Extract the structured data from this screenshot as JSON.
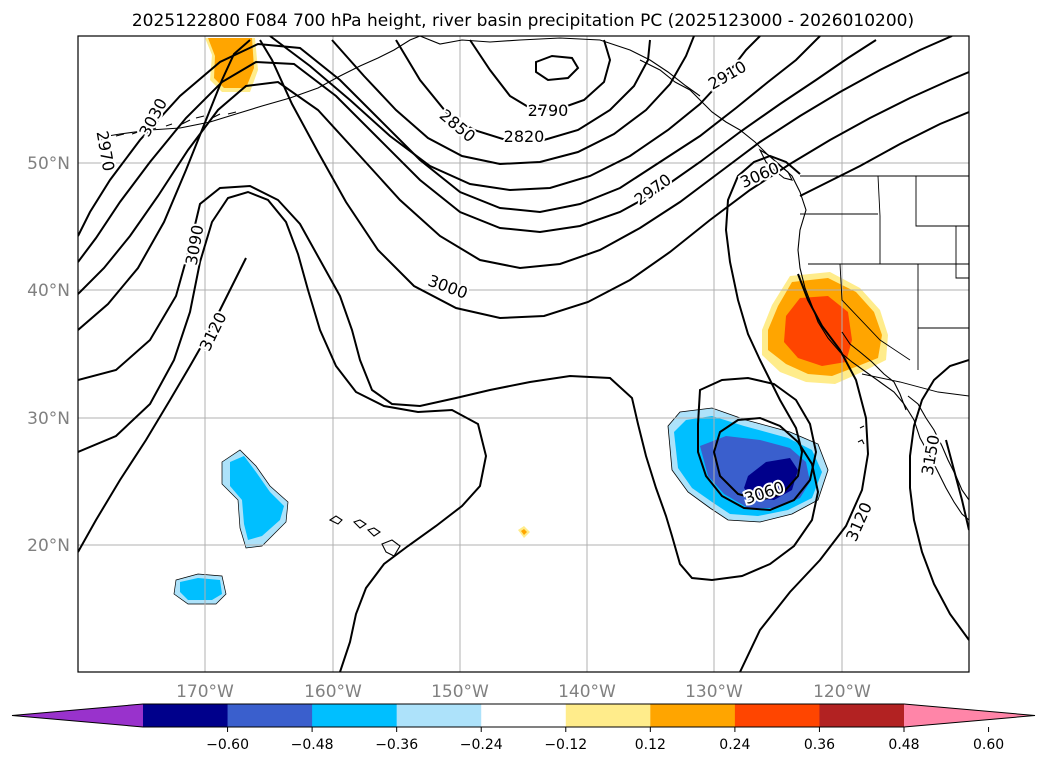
{
  "title": "2025122800 F084 700 hPa height, river basin precipitation PC (2025123000 - 2026010200)",
  "map": {
    "lon_range": [
      -180,
      -110
    ],
    "lat_range": [
      10,
      60
    ],
    "lon_ticks": [
      {
        "value": -170,
        "label": "170°W"
      },
      {
        "value": -160,
        "label": "160°W"
      },
      {
        "value": -150,
        "label": "150°W"
      },
      {
        "value": -140,
        "label": "140°W"
      },
      {
        "value": -130,
        "label": "130°W"
      },
      {
        "value": -120,
        "label": "120°W"
      }
    ],
    "lat_ticks": [
      {
        "value": 20,
        "label": "20°N"
      },
      {
        "value": 30,
        "label": "30°N"
      },
      {
        "value": 40,
        "label": "40°N"
      },
      {
        "value": 50,
        "label": "50°N"
      }
    ],
    "grid": true,
    "contour_labels": [
      {
        "text": "2970"
      },
      {
        "text": "3030"
      },
      {
        "text": "3090"
      },
      {
        "text": "3120"
      },
      {
        "text": "2850"
      },
      {
        "text": "2820"
      },
      {
        "text": "2790"
      },
      {
        "text": "2910"
      },
      {
        "text": "3000"
      },
      {
        "text": "2970"
      },
      {
        "text": "3060"
      },
      {
        "text": "3060"
      },
      {
        "text": "3120"
      },
      {
        "text": "3150"
      }
    ]
  },
  "colorbar": {
    "colors": [
      "#9932CC",
      "#00008B",
      "#3A5FCD",
      "#00BFFF",
      "#ADE2FA",
      "#FFFFFF",
      "#FFEC8B",
      "#FFA500",
      "#FF4500",
      "#B22222",
      "#FF85A8"
    ],
    "ticks": [
      "−0.60",
      "−0.48",
      "−0.36",
      "−0.24",
      "−0.12",
      "0.12",
      "0.24",
      "0.36",
      "0.48",
      "0.60"
    ],
    "extend": "both"
  }
}
